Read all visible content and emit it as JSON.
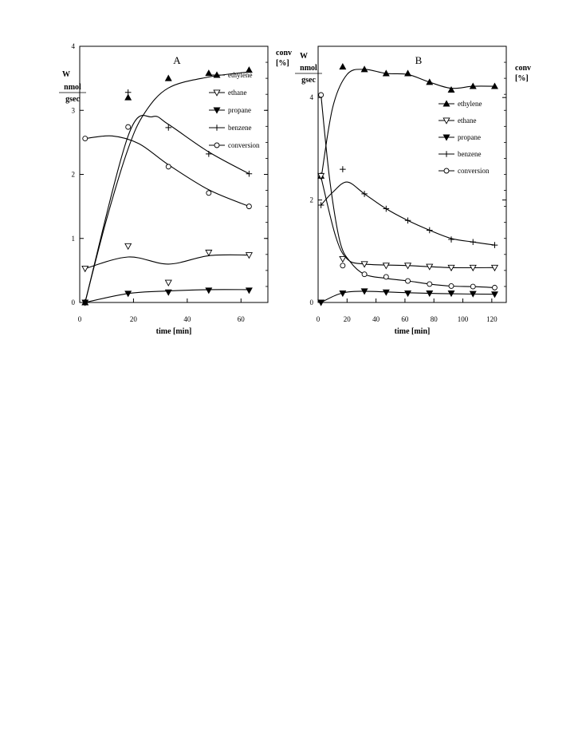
{
  "chart_data": [
    {
      "panel": "A",
      "type": "line",
      "ylabel_main": "W",
      "ylabel_num": "nmol",
      "ylabel_den": "gsec",
      "ylabel_right_main": "conv",
      "ylabel_right_unit": "[%]",
      "xlabel": "time [min]",
      "xlim": [
        0,
        70
      ],
      "ylim": [
        0,
        4
      ],
      "xticks": [
        "0",
        "20",
        "40",
        "60"
      ],
      "yticks": [
        "0",
        "1",
        "2",
        "3",
        "4"
      ],
      "legend_position": "top-right",
      "series": [
        {
          "name": "ethylene",
          "marker": "triangle-up-filled",
          "points": [
            [
              2,
              0
            ],
            [
              18,
              3.2
            ],
            [
              33,
              3.5
            ],
            [
              48,
              3.58
            ],
            [
              63,
              3.63
            ]
          ],
          "curve": [
            [
              2,
              0
            ],
            [
              10,
              1.3
            ],
            [
              18,
              2.4
            ],
            [
              24,
              2.95
            ],
            [
              33,
              3.35
            ],
            [
              48,
              3.52
            ],
            [
              63,
              3.6
            ]
          ]
        },
        {
          "name": "ethane",
          "marker": "triangle-down-open",
          "points": [
            [
              2,
              0.53
            ],
            [
              18,
              0.88
            ],
            [
              33,
              0.31
            ],
            [
              48,
              0.78
            ],
            [
              63,
              0.74
            ]
          ],
          "curve": [
            [
              2,
              0.53
            ],
            [
              18,
              0.71
            ],
            [
              33,
              0.6
            ],
            [
              48,
              0.73
            ],
            [
              63,
              0.74
            ]
          ]
        },
        {
          "name": "propane",
          "marker": "triangle-down-filled",
          "points": [
            [
              2,
              0
            ],
            [
              18,
              0.14
            ],
            [
              33,
              0.16
            ],
            [
              48,
              0.19
            ],
            [
              63,
              0.19
            ]
          ],
          "curve": [
            [
              2,
              0
            ],
            [
              18,
              0.14
            ],
            [
              33,
              0.18
            ],
            [
              48,
              0.2
            ],
            [
              63,
              0.2
            ]
          ]
        },
        {
          "name": "benzene",
          "marker": "plus",
          "points": [
            [
              2,
              0
            ],
            [
              18,
              3.28
            ],
            [
              33,
              2.73
            ],
            [
              48,
              2.32
            ],
            [
              63,
              2.01
            ]
          ],
          "curve": [
            [
              2,
              0
            ],
            [
              18,
              2.6
            ],
            [
              27,
              2.9
            ],
            [
              33,
              2.78
            ],
            [
              48,
              2.35
            ],
            [
              63,
              2.01
            ]
          ]
        },
        {
          "name": "conversion",
          "marker": "circle-open",
          "points": [
            [
              2,
              2.56
            ],
            [
              18,
              2.74
            ],
            [
              33,
              2.12
            ],
            [
              48,
              1.71
            ],
            [
              63,
              1.5
            ]
          ],
          "curve": [
            [
              2,
              2.56
            ],
            [
              12,
              2.6
            ],
            [
              22,
              2.48
            ],
            [
              33,
              2.15
            ],
            [
              48,
              1.76
            ],
            [
              63,
              1.5
            ]
          ]
        }
      ]
    },
    {
      "panel": "B",
      "type": "line",
      "ylabel_main": "W",
      "ylabel_num": "nmol",
      "ylabel_den": "gsec",
      "ylabel_right_main": "conv",
      "ylabel_right_unit": "[%]",
      "xlabel": "time [min]",
      "xlim": [
        0,
        130
      ],
      "ylim": [
        0,
        5
      ],
      "xticks": [
        "0",
        "20",
        "40",
        "60",
        "80",
        "100",
        "120"
      ],
      "yticks": [
        "0",
        "2",
        "4"
      ],
      "legend_position": "top-right",
      "series": [
        {
          "name": "ethylene",
          "marker": "triangle-up-filled",
          "points": [
            [
              2,
              2.47
            ],
            [
              17,
              4.6
            ],
            [
              32,
              4.55
            ],
            [
              47,
              4.47
            ],
            [
              62,
              4.47
            ],
            [
              77,
              4.3
            ],
            [
              92,
              4.15
            ],
            [
              107,
              4.22
            ],
            [
              122,
              4.22
            ]
          ],
          "curve": [
            [
              2,
              2.4
            ],
            [
              10,
              3.8
            ],
            [
              20,
              4.45
            ],
            [
              32,
              4.55
            ],
            [
              47,
              4.47
            ],
            [
              62,
              4.45
            ],
            [
              77,
              4.3
            ],
            [
              92,
              4.18
            ],
            [
              107,
              4.22
            ],
            [
              122,
              4.22
            ]
          ]
        },
        {
          "name": "ethane",
          "marker": "triangle-down-open",
          "points": [
            [
              2,
              2.47
            ],
            [
              17,
              0.85
            ],
            [
              32,
              0.75
            ],
            [
              47,
              0.72
            ],
            [
              62,
              0.72
            ],
            [
              77,
              0.7
            ],
            [
              92,
              0.68
            ],
            [
              107,
              0.68
            ],
            [
              122,
              0.68
            ]
          ],
          "curve": [
            [
              2,
              2.45
            ],
            [
              12,
              1.3
            ],
            [
              20,
              0.85
            ],
            [
              32,
              0.75
            ],
            [
              62,
              0.72
            ],
            [
              92,
              0.68
            ],
            [
              122,
              0.68
            ]
          ]
        },
        {
          "name": "propane",
          "marker": "triangle-down-filled",
          "points": [
            [
              2,
              0
            ],
            [
              17,
              0.18
            ],
            [
              32,
              0.22
            ],
            [
              47,
              0.2
            ],
            [
              62,
              0.18
            ],
            [
              77,
              0.18
            ],
            [
              92,
              0.18
            ],
            [
              107,
              0.17
            ],
            [
              122,
              0.16
            ]
          ],
          "curve": [
            [
              2,
              0
            ],
            [
              15,
              0.17
            ],
            [
              30,
              0.22
            ],
            [
              62,
              0.19
            ],
            [
              92,
              0.17
            ],
            [
              122,
              0.16
            ]
          ]
        },
        {
          "name": "benzene",
          "marker": "plus",
          "points": [
            [
              2,
              1.9
            ],
            [
              17,
              2.6
            ],
            [
              32,
              2.12
            ],
            [
              47,
              1.83
            ],
            [
              62,
              1.6
            ],
            [
              77,
              1.41
            ],
            [
              92,
              1.23
            ],
            [
              107,
              1.18
            ],
            [
              122,
              1.12
            ]
          ],
          "curve": [
            [
              2,
              1.9
            ],
            [
              10,
              2.15
            ],
            [
              20,
              2.35
            ],
            [
              32,
              2.12
            ],
            [
              47,
              1.83
            ],
            [
              62,
              1.6
            ],
            [
              77,
              1.41
            ],
            [
              92,
              1.25
            ],
            [
              107,
              1.18
            ],
            [
              122,
              1.12
            ]
          ]
        },
        {
          "name": "conversion",
          "marker": "circle-open",
          "points": [
            [
              2,
              4.05
            ],
            [
              17,
              0.72
            ],
            [
              32,
              0.55
            ],
            [
              47,
              0.5
            ],
            [
              62,
              0.42
            ],
            [
              77,
              0.36
            ],
            [
              92,
              0.32
            ],
            [
              107,
              0.31
            ],
            [
              122,
              0.29
            ]
          ],
          "curve": [
            [
              2,
              4.05
            ],
            [
              8,
              2.4
            ],
            [
              15,
              1.2
            ],
            [
              22,
              0.8
            ],
            [
              32,
              0.55
            ],
            [
              47,
              0.47
            ],
            [
              62,
              0.42
            ],
            [
              77,
              0.36
            ],
            [
              92,
              0.32
            ],
            [
              107,
              0.31
            ],
            [
              122,
              0.29
            ]
          ]
        }
      ]
    }
  ]
}
